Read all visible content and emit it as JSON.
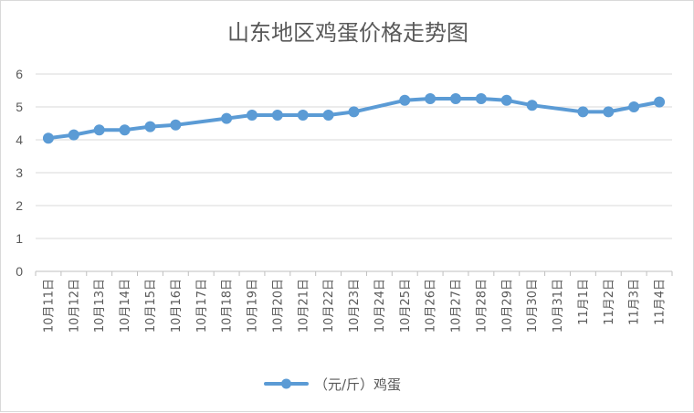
{
  "chart_data": {
    "type": "line",
    "title": "山东地区鸡蛋价格走势图",
    "xlabel": "",
    "ylabel": "",
    "ylim": [
      0,
      6
    ],
    "yticks": [
      0,
      1,
      2,
      3,
      4,
      5,
      6
    ],
    "grid": true,
    "legend_position": "bottom",
    "categories": [
      "10月11日",
      "10月12日",
      "10月13日",
      "10月14日",
      "10月15日",
      "10月16日",
      "10月17日",
      "10月18日",
      "10月19日",
      "10月20日",
      "10月21日",
      "10月22日",
      "10月23日",
      "10月24日",
      "10月25日",
      "10月26日",
      "10月27日",
      "10月28日",
      "10月29日",
      "10月30日",
      "10月31日",
      "11月1日",
      "11月2日",
      "11月3日",
      "11月4日"
    ],
    "series": [
      {
        "name": "（元/斤）鸡蛋",
        "color": "#5b9bd5",
        "values": [
          4.05,
          4.15,
          4.3,
          4.3,
          4.4,
          4.45,
          null,
          4.65,
          4.75,
          4.75,
          4.75,
          4.75,
          4.85,
          null,
          5.2,
          5.25,
          5.25,
          5.25,
          5.2,
          5.05,
          null,
          4.85,
          4.85,
          5.0,
          5.15
        ]
      }
    ]
  }
}
